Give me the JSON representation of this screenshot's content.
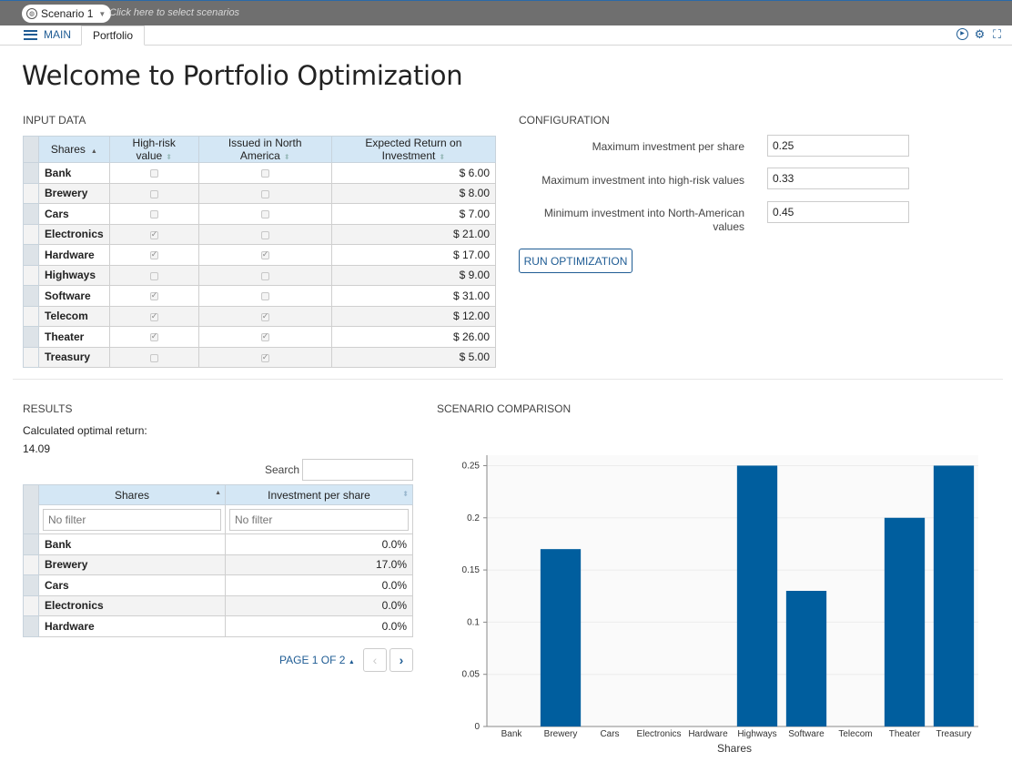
{
  "topbar": {
    "scenario": "Scenario 1",
    "hint": "Click here to select scenarios"
  },
  "nav": {
    "main_label": "MAIN",
    "tab": "Portfolio"
  },
  "page_title": "Welcome to Portfolio Optimization",
  "input_data": {
    "title": "INPUT DATA",
    "columns": [
      "Shares",
      "High-risk value",
      "Issued in North America",
      "Expected Return on Investment"
    ],
    "rows": [
      {
        "share": "Bank",
        "high_risk": false,
        "north_america": false,
        "return": "$ 6.00"
      },
      {
        "share": "Brewery",
        "high_risk": false,
        "north_america": false,
        "return": "$ 8.00"
      },
      {
        "share": "Cars",
        "high_risk": false,
        "north_america": false,
        "return": "$ 7.00"
      },
      {
        "share": "Electronics",
        "high_risk": true,
        "north_america": false,
        "return": "$ 21.00"
      },
      {
        "share": "Hardware",
        "high_risk": true,
        "north_america": true,
        "return": "$ 17.00"
      },
      {
        "share": "Highways",
        "high_risk": false,
        "north_america": false,
        "return": "$ 9.00"
      },
      {
        "share": "Software",
        "high_risk": true,
        "north_america": false,
        "return": "$ 31.00"
      },
      {
        "share": "Telecom",
        "high_risk": true,
        "north_america": true,
        "return": "$ 12.00"
      },
      {
        "share": "Theater",
        "high_risk": true,
        "north_america": true,
        "return": "$ 26.00"
      },
      {
        "share": "Treasury",
        "high_risk": false,
        "north_america": true,
        "return": "$ 5.00"
      }
    ]
  },
  "configuration": {
    "title": "CONFIGURATION",
    "fields": [
      {
        "label": "Maximum investment per share",
        "value": "0.25"
      },
      {
        "label": "Maximum investment into high-risk values",
        "value": "0.33"
      },
      {
        "label": "Minimum investment into North-American values",
        "value": "0.45"
      }
    ],
    "run_label": "RUN OPTIMIZATION"
  },
  "results": {
    "title": "RESULTS",
    "optimal_label": "Calculated optimal return:",
    "optimal_value": "14.09",
    "search_label": "Search",
    "columns": [
      "Shares",
      "Investment per share"
    ],
    "filter_placeholder": "No filter",
    "rows": [
      {
        "share": "Bank",
        "investment": "0.0%"
      },
      {
        "share": "Brewery",
        "investment": "17.0%"
      },
      {
        "share": "Cars",
        "investment": "0.0%"
      },
      {
        "share": "Electronics",
        "investment": "0.0%"
      },
      {
        "share": "Hardware",
        "investment": "0.0%"
      }
    ],
    "pager": "PAGE 1 OF 2"
  },
  "comparison": {
    "title": "SCENARIO COMPARISON"
  },
  "chart_data": {
    "type": "bar",
    "categories": [
      "Bank",
      "Brewery",
      "Cars",
      "Electronics",
      "Hardware",
      "Highways",
      "Software",
      "Telecom",
      "Theater",
      "Treasury"
    ],
    "values": [
      0,
      0.17,
      0,
      0,
      0,
      0.25,
      0.13,
      0,
      0.2,
      0.25
    ],
    "xlabel": "Shares",
    "ylabel": "",
    "ylim": [
      0,
      0.25
    ],
    "yticks": [
      "0",
      "0.05",
      "0.1",
      "0.15",
      "0.2",
      "0.25"
    ],
    "grid": true,
    "bar_color": "#005e9e"
  },
  "colors": {
    "accent": "#1f5c94",
    "header_bg": "#d4e7f5",
    "topbar": "#6f6f6f"
  }
}
